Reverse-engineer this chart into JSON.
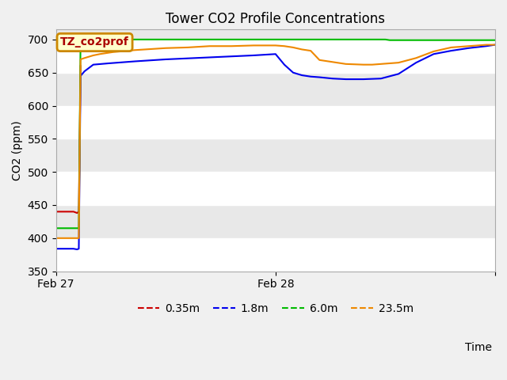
{
  "title": "Tower CO2 Profile Concentrations",
  "ylabel": "CO2 (ppm)",
  "xlabel": "Time",
  "ylim": [
    350,
    715
  ],
  "xlim": [
    0.0,
    1.0
  ],
  "fig_facecolor": "#f0f0f0",
  "plot_facecolor": "#e8e8e8",
  "legend_label": "TZ_co2prof",
  "series": {
    "0.35m": {
      "color": "#cc0000",
      "data_x": [
        0.0,
        0.035,
        0.04,
        0.048,
        0.052,
        0.056
      ],
      "data_y": [
        440,
        440,
        440,
        438,
        440,
        660
      ]
    },
    "1.8m": {
      "color": "#0000ee",
      "data_x": [
        0.0,
        0.03,
        0.04,
        0.048,
        0.052,
        0.056,
        0.065,
        0.085,
        0.12,
        0.18,
        0.25,
        0.35,
        0.45,
        0.5,
        0.52,
        0.54,
        0.56,
        0.58,
        0.6,
        0.63,
        0.66,
        0.7,
        0.74,
        0.78,
        0.82,
        0.86,
        0.9,
        0.94,
        0.98,
        1.0
      ],
      "data_y": [
        384,
        384,
        384,
        383,
        384,
        645,
        652,
        662,
        664,
        667,
        670,
        673,
        676,
        678,
        662,
        650,
        646,
        644,
        643,
        641,
        640,
        640,
        641,
        648,
        665,
        678,
        683,
        687,
        690,
        692
      ]
    },
    "6.0m": {
      "color": "#00bb00",
      "data_x": [
        0.0,
        0.03,
        0.04,
        0.048,
        0.052,
        0.056,
        0.75,
        0.76,
        1.0
      ],
      "data_y": [
        415,
        415,
        415,
        415,
        415,
        700,
        700,
        699,
        699
      ]
    },
    "23.5m": {
      "color": "#ee8800",
      "data_x": [
        0.0,
        0.03,
        0.04,
        0.048,
        0.052,
        0.056,
        0.065,
        0.085,
        0.1,
        0.13,
        0.18,
        0.25,
        0.3,
        0.35,
        0.4,
        0.45,
        0.5,
        0.52,
        0.54,
        0.56,
        0.58,
        0.6,
        0.63,
        0.66,
        0.7,
        0.72,
        0.74,
        0.78,
        0.82,
        0.86,
        0.9,
        0.94,
        0.98,
        1.0
      ],
      "data_y": [
        400,
        400,
        400,
        400,
        400,
        670,
        672,
        676,
        678,
        681,
        684,
        687,
        688,
        690,
        690,
        691,
        691,
        690,
        688,
        685,
        683,
        669,
        666,
        663,
        662,
        662,
        663,
        665,
        672,
        682,
        688,
        690,
        692,
        692
      ]
    }
  },
  "xtick_positions": [
    0.0,
    0.5,
    1.0
  ],
  "xtick_labels": [
    "Feb 27",
    "Feb 28",
    ""
  ],
  "ytick_positions": [
    350,
    400,
    450,
    500,
    550,
    600,
    650,
    700
  ],
  "grid_colors": [
    "#ffffff",
    "#e0e0e0"
  ],
  "legend_items": [
    "0.35m",
    "1.8m",
    "6.0m",
    "23.5m"
  ],
  "legend_colors": [
    "#cc0000",
    "#0000ee",
    "#00bb00",
    "#ee8800"
  ],
  "annotation_facecolor": "#ffffcc",
  "annotation_edgecolor": "#cc8800",
  "annotation_textcolor": "#aa0000"
}
